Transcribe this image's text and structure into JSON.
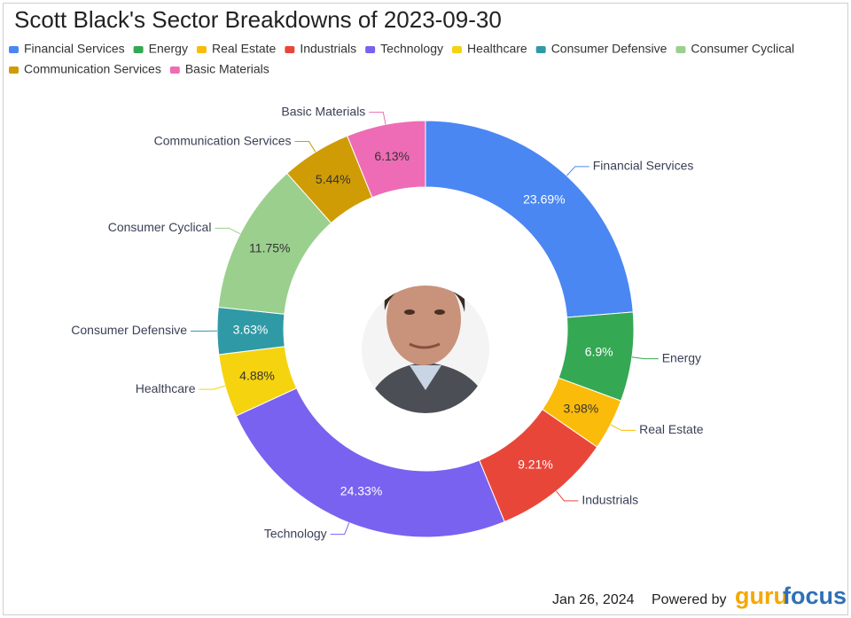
{
  "chart_data": {
    "type": "donut",
    "title": "Scott Black's Sector Breakdowns of 2023-09-30",
    "categories": [
      "Financial Services",
      "Energy",
      "Real Estate",
      "Industrials",
      "Technology",
      "Healthcare",
      "Consumer Defensive",
      "Consumer Cyclical",
      "Communication Services",
      "Basic Materials"
    ],
    "values": [
      23.69,
      6.9,
      3.98,
      9.21,
      24.33,
      4.88,
      3.63,
      11.75,
      5.44,
      6.13
    ],
    "value_labels": [
      "23.69%",
      "6.9%",
      "3.98%",
      "9.21%",
      "24.33%",
      "4.88%",
      "3.63%",
      "11.75%",
      "5.44%",
      "6.13%"
    ],
    "colors": [
      "#4a87f2",
      "#35a853",
      "#fbbb0a",
      "#e9463a",
      "#7962f0",
      "#f5d30f",
      "#2f9aa6",
      "#9bcf8e",
      "#cf9c06",
      "#ee6cb6"
    ],
    "legend": "top"
  },
  "footer": {
    "date": "Jan 26, 2024",
    "powered_by": "Powered by",
    "logo_guru": "guru",
    "logo_focus": "focus"
  }
}
